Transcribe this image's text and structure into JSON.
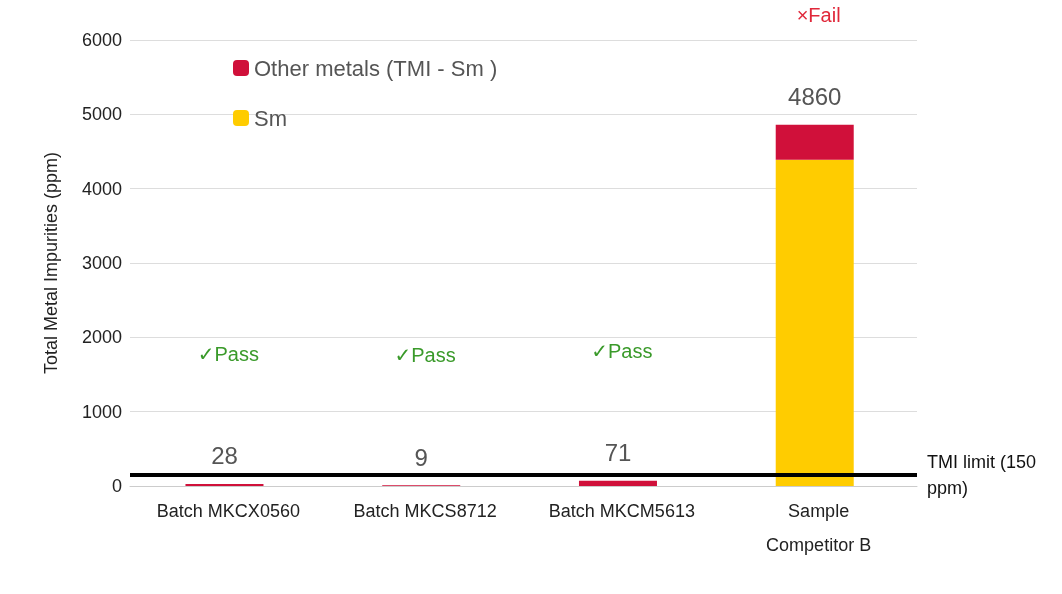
{
  "chart_data": {
    "type": "bar",
    "stacked": true,
    "ylabel": "Total Metal Impurities (ppm)",
    "categories": [
      "Batch MKCX0560",
      "Batch MKCS8712",
      "Batch MKCM5613",
      "Sample\nCompetitor B"
    ],
    "series": [
      {
        "name": "Sm",
        "color": "#ffcc00",
        "values": [
          null,
          null,
          null,
          4390
        ]
      },
      {
        "name": "Other metals (TMI - Sm )",
        "color": "#d0103a",
        "values": [
          28,
          9,
          71,
          470
        ]
      }
    ],
    "totals": [
      "28",
      "9",
      "71",
      "4860"
    ],
    "ylim": [
      0,
      6000
    ],
    "yticks": [
      0,
      1000,
      2000,
      3000,
      4000,
      5000,
      6000
    ],
    "grid": "y",
    "legend": "top left",
    "ref_lines": [
      {
        "axis": "y",
        "value": 150,
        "label": "TMI limit (150 ppm)",
        "color": "#000000"
      }
    ],
    "annotations": [
      "✓Pass",
      "✓Pass",
      "✓Pass",
      "×Fail"
    ]
  }
}
